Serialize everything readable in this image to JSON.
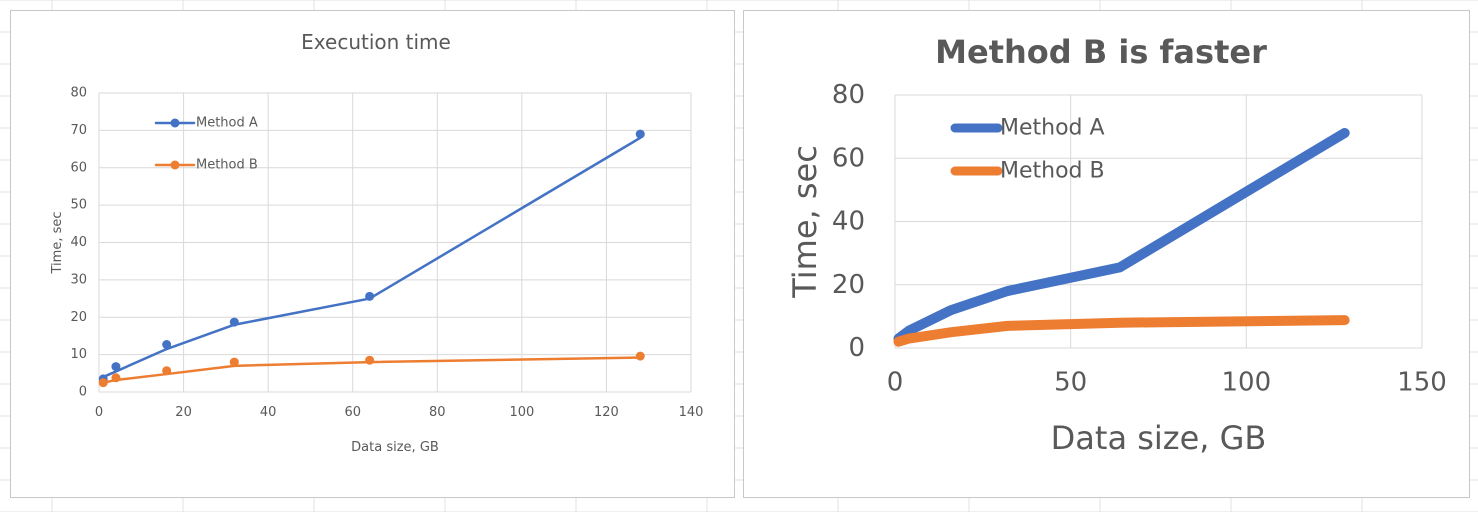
{
  "colors": {
    "method_a": "#4472c4",
    "method_b": "#ed7d31",
    "gridline": "#d9d9d9",
    "axis_text": "#595959",
    "sheet_grid": "#e2e2e2"
  },
  "chart_data": [
    {
      "type": "scatter",
      "title": "Execution time",
      "xlabel": "Data size, GB",
      "ylabel": "Time, sec",
      "xlim": [
        0,
        140
      ],
      "ylim": [
        0,
        80
      ],
      "xticks": [
        0,
        20,
        40,
        60,
        80,
        100,
        120,
        140
      ],
      "yticks": [
        0,
        10,
        20,
        30,
        40,
        50,
        60,
        70,
        80
      ],
      "grid": true,
      "legend_position": "top-left",
      "series": [
        {
          "name": "Method A",
          "points": [
            [
              1,
              3.5
            ],
            [
              4,
              6.8
            ],
            [
              16,
              12.7
            ],
            [
              32,
              18.7
            ],
            [
              64,
              25.6
            ],
            [
              128,
              69
            ]
          ],
          "trendline": [
            [
              1,
              4
            ],
            [
              4,
              5.5
            ],
            [
              16,
              11.5
            ],
            [
              32,
              18
            ],
            [
              64,
              25
            ],
            [
              128,
              68
            ]
          ]
        },
        {
          "name": "Method B",
          "points": [
            [
              1,
              2.5
            ],
            [
              4,
              3.8
            ],
            [
              16,
              5.7
            ],
            [
              32,
              8
            ],
            [
              64,
              8.5
            ],
            [
              128,
              9.6
            ]
          ],
          "trendline": [
            [
              1,
              2.5
            ],
            [
              4,
              3.2
            ],
            [
              16,
              4.8
            ],
            [
              32,
              7
            ],
            [
              64,
              8
            ],
            [
              128,
              9.2
            ]
          ]
        }
      ]
    },
    {
      "type": "line",
      "title": "Method B is faster",
      "xlabel": "Data size, GB",
      "ylabel": "Time, sec",
      "xlim": [
        0,
        150
      ],
      "ylim": [
        0,
        80
      ],
      "xticks": [
        0,
        50,
        100,
        150
      ],
      "yticks": [
        0,
        20,
        40,
        60,
        80
      ],
      "grid": true,
      "legend_position": "top-left",
      "series": [
        {
          "name": "Method A",
          "points": [
            [
              1,
              3
            ],
            [
              4,
              5.5
            ],
            [
              16,
              12
            ],
            [
              32,
              18
            ],
            [
              64,
              25.5
            ],
            [
              128,
              68
            ]
          ]
        },
        {
          "name": "Method B",
          "points": [
            [
              1,
              2
            ],
            [
              4,
              3
            ],
            [
              16,
              5
            ],
            [
              32,
              7
            ],
            [
              64,
              8
            ],
            [
              128,
              8.8
            ]
          ]
        }
      ]
    }
  ]
}
